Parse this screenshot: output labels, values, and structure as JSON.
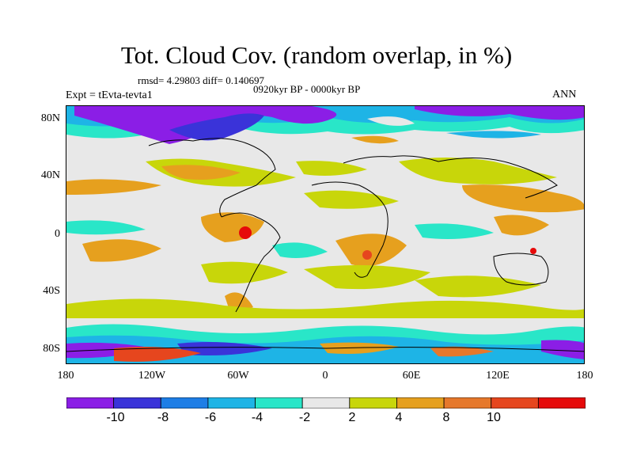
{
  "header": {
    "title": "Tot. Cloud Cov. (random overlap, in %)",
    "stats": "rmsd= 4.29803 diff= 0.140697",
    "period": "0920kyr BP - 0000kyr BP",
    "experiment": "Expt = tEvta-tevta1",
    "season": "ANN"
  },
  "axes": {
    "y_ticks": [
      {
        "label": "80N",
        "lat": 80
      },
      {
        "label": "40N",
        "lat": 40
      },
      {
        "label": "0",
        "lat": 0
      },
      {
        "label": "40S",
        "lat": -40
      },
      {
        "label": "80S",
        "lat": -80
      }
    ],
    "x_ticks": [
      {
        "label": "180",
        "lon": -180
      },
      {
        "label": "120W",
        "lon": -120
      },
      {
        "label": "60W",
        "lon": -60
      },
      {
        "label": "0",
        "lon": 0
      },
      {
        "label": "60E",
        "lon": 60
      },
      {
        "label": "120E",
        "lon": 120
      },
      {
        "label": "180",
        "lon": 180
      }
    ],
    "lat_range": [
      -90,
      90
    ],
    "lon_range": [
      -180,
      180
    ]
  },
  "colorbar": {
    "colors": [
      "#8b1ee6",
      "#3a33d9",
      "#1e7ee6",
      "#1eb4e6",
      "#29e6c8",
      "#e8e8e8",
      "#c8d60a",
      "#e6a01e",
      "#e6782b",
      "#e6461e",
      "#e60a0a"
    ],
    "labels": [
      "-10",
      "-8",
      "-6",
      "-4",
      "-2",
      "2",
      "4",
      "8",
      "10"
    ]
  }
}
